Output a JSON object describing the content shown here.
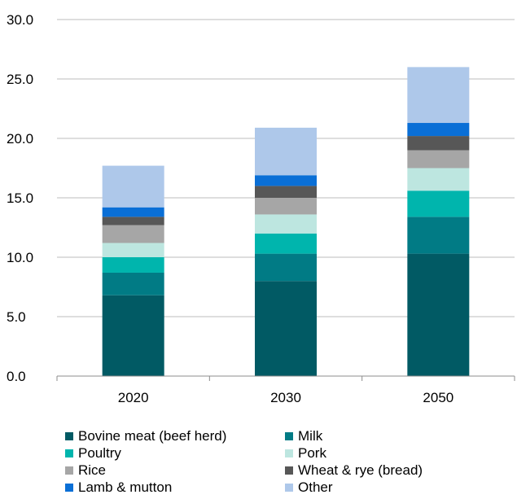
{
  "chart_data": {
    "type": "bar",
    "stacked": true,
    "categories": [
      "2020",
      "2030",
      "2050"
    ],
    "ylim": [
      0,
      30
    ],
    "yticks": [
      0,
      5,
      10,
      15,
      20,
      25,
      30
    ],
    "ytick_labels": [
      "0.0",
      "5.0",
      "10.0",
      "15.0",
      "20.0",
      "25.0",
      "30.0"
    ],
    "grid": true,
    "legend_position": "bottom",
    "series": [
      {
        "name": "Bovine meat (beef herd)",
        "color": "#015a64",
        "values": [
          6.8,
          8.0,
          10.3
        ]
      },
      {
        "name": "Milk",
        "color": "#017b85",
        "values": [
          1.9,
          2.3,
          3.1
        ]
      },
      {
        "name": "Poultry",
        "color": "#00b5ad",
        "values": [
          1.3,
          1.7,
          2.2
        ]
      },
      {
        "name": "Pork",
        "color": "#bde6e0",
        "values": [
          1.2,
          1.6,
          1.9
        ]
      },
      {
        "name": "Rice",
        "color": "#a6a6a6",
        "values": [
          1.5,
          1.4,
          1.5
        ]
      },
      {
        "name": "Wheat & rye (bread)",
        "color": "#575757",
        "values": [
          0.7,
          1.0,
          1.2
        ]
      },
      {
        "name": "Lamb & mutton",
        "color": "#0a6fd6",
        "values": [
          0.8,
          0.9,
          1.1
        ]
      },
      {
        "name": "Other",
        "color": "#aec8ea",
        "values": [
          3.5,
          4.0,
          4.7
        ]
      }
    ]
  }
}
